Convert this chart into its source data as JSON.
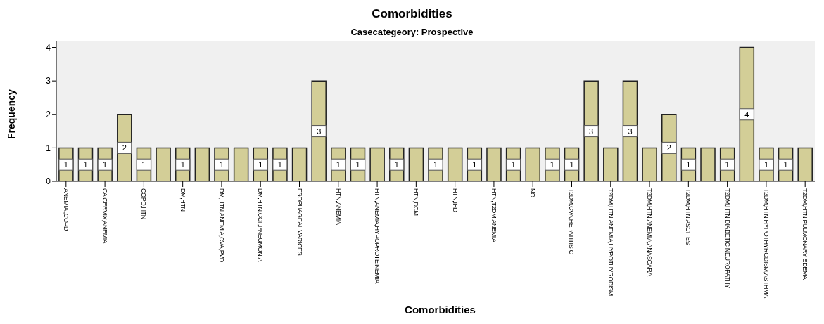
{
  "chart_data": {
    "type": "bar",
    "title": "Comorbidities",
    "subtitle": "Casecategeory: Prospective",
    "xlabel": "Comorbidities",
    "ylabel": "Frequency",
    "categories": [
      "ANEMIA ,COPD",
      null,
      "CA CERVIX,ANEMIA",
      null,
      "COPD,HTN",
      null,
      "DM,HTN",
      null,
      "DM,HTN,ANEMIA,CVA,PVD",
      null,
      "DM,HTN,CCF,PNEUMONIA",
      null,
      "ESOPHAGEAL VARICES",
      null,
      "HTN,ANEMIA",
      null,
      "HTN,ANEMIA,HYPOPROTEINEMIA",
      null,
      "HTN,DCM",
      null,
      "HTN,IHD",
      null,
      "HTN,T2DM,ANEMIA",
      null,
      "NO",
      null,
      "T2DM,CVA,HEPATITIS C",
      null,
      "T2DM,HTN,ANEMIA,HYPOTHYRODISM",
      null,
      "T2DM,HTN,ANEMIA,ANASCARA",
      null,
      "T2DM,HTN,ASCITES",
      null,
      "T2DM,HTN,DIABETIC NEUROPATHY",
      null,
      "T2DM,HTN,HYPOTHYRODISM,ASTHMA",
      null,
      "T2DM,HTN,PULMONARY EDEMA"
    ],
    "values": [
      1,
      1,
      1,
      2,
      1,
      1,
      1,
      1,
      1,
      1,
      1,
      1,
      1,
      3,
      1,
      1,
      1,
      1,
      1,
      1,
      1,
      1,
      1,
      1,
      1,
      1,
      1,
      3,
      1,
      3,
      1,
      2,
      1,
      1,
      1,
      4,
      1,
      1,
      1
    ],
    "value_labels": [
      "1",
      "1",
      "1",
      "2",
      "1",
      null,
      "1",
      null,
      "1",
      null,
      "1",
      "1",
      null,
      "3",
      "1",
      "1",
      null,
      "1",
      null,
      "1",
      null,
      "1",
      null,
      "1",
      null,
      "1",
      "1",
      "3",
      null,
      "3",
      null,
      "2",
      "1",
      null,
      "1",
      "4",
      "1",
      "1",
      null
    ],
    "color": "#d3ce97",
    "ylim": [
      0,
      4.2
    ],
    "yticks": [
      0,
      1,
      2,
      3,
      4
    ],
    "grid": false,
    "legend": false
  }
}
